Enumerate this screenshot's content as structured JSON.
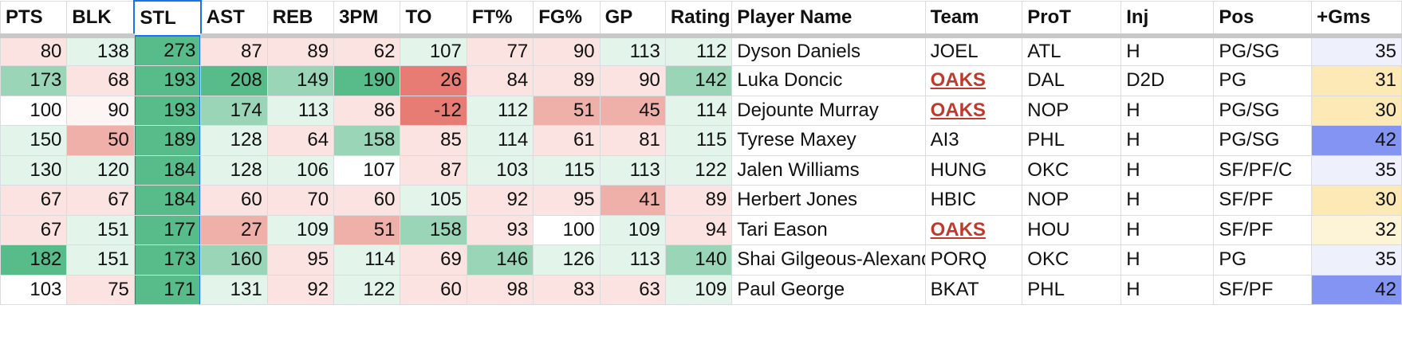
{
  "headers": [
    "PTS",
    "BLK",
    "STL",
    "AST",
    "REB",
    "3PM",
    "TO",
    "FT%",
    "FG%",
    "GP",
    "Rating",
    "Player Name",
    "Team",
    "ProT",
    "Inj",
    "Pos",
    "+Gms"
  ],
  "selected_column": "STL",
  "colors": {
    "green_strong": "#57bb8a",
    "green_mid": "#9bd5b8",
    "green_light": "#e3f4eb",
    "red_strong": "#e67c73",
    "red_mid": "#f0b0aa",
    "red_light": "#fbe3e1",
    "yellow": "#fde9b5",
    "yellow_light": "#fdf3d6",
    "blue": "#8494f2",
    "blue_light": "#eef0fb",
    "oaks_text": "#c0392b",
    "selection": "#1a73e8"
  },
  "rows": [
    {
      "pts": "80",
      "blk": "138",
      "stl": "273",
      "ast": "87",
      "reb": "89",
      "tpm": "62",
      "to": "107",
      "ft": "77",
      "fg": "90",
      "gp": "113",
      "rating": "112",
      "name": "Dyson Daniels",
      "team": "JOEL",
      "prot": "ATL",
      "inj": "H",
      "pos": "PG/SG",
      "gms": "35"
    },
    {
      "pts": "173",
      "blk": "68",
      "stl": "193",
      "ast": "208",
      "reb": "149",
      "tpm": "190",
      "to": "26",
      "ft": "84",
      "fg": "89",
      "gp": "90",
      "rating": "142",
      "name": "Luka Doncic",
      "team": "OAKS",
      "prot": "DAL",
      "inj": "D2D",
      "pos": "PG",
      "gms": "31"
    },
    {
      "pts": "100",
      "blk": "90",
      "stl": "193",
      "ast": "174",
      "reb": "113",
      "tpm": "86",
      "to": "-12",
      "ft": "112",
      "fg": "51",
      "gp": "45",
      "rating": "114",
      "name": "Dejounte Murray",
      "team": "OAKS",
      "prot": "NOP",
      "inj": "H",
      "pos": "PG/SG",
      "gms": "30"
    },
    {
      "pts": "150",
      "blk": "50",
      "stl": "189",
      "ast": "128",
      "reb": "64",
      "tpm": "158",
      "to": "85",
      "ft": "114",
      "fg": "61",
      "gp": "81",
      "rating": "115",
      "name": "Tyrese Maxey",
      "team": "AI3",
      "prot": "PHL",
      "inj": "H",
      "pos": "PG/SG",
      "gms": "42"
    },
    {
      "pts": "130",
      "blk": "120",
      "stl": "184",
      "ast": "128",
      "reb": "106",
      "tpm": "107",
      "to": "87",
      "ft": "103",
      "fg": "115",
      "gp": "113",
      "rating": "122",
      "name": "Jalen Williams",
      "team": "HUNG",
      "prot": "OKC",
      "inj": "H",
      "pos": "SF/PF/C",
      "gms": "35"
    },
    {
      "pts": "67",
      "blk": "67",
      "stl": "184",
      "ast": "60",
      "reb": "70",
      "tpm": "60",
      "to": "105",
      "ft": "92",
      "fg": "95",
      "gp": "41",
      "rating": "89",
      "name": "Herbert Jones",
      "team": "HBIC",
      "prot": "NOP",
      "inj": "H",
      "pos": "SF/PF",
      "gms": "30"
    },
    {
      "pts": "67",
      "blk": "151",
      "stl": "177",
      "ast": "27",
      "reb": "109",
      "tpm": "51",
      "to": "158",
      "ft": "93",
      "fg": "100",
      "gp": "109",
      "rating": "94",
      "name": "Tari Eason",
      "team": "OAKS",
      "prot": "HOU",
      "inj": "H",
      "pos": "SF/PF",
      "gms": "32"
    },
    {
      "pts": "182",
      "blk": "151",
      "stl": "173",
      "ast": "160",
      "reb": "95",
      "tpm": "114",
      "to": "69",
      "ft": "146",
      "fg": "126",
      "gp": "113",
      "rating": "140",
      "name": "Shai Gilgeous-Alexander",
      "team": "PORQ",
      "prot": "OKC",
      "inj": "H",
      "pos": "PG",
      "gms": "35"
    },
    {
      "pts": "103",
      "blk": "75",
      "stl": "171",
      "ast": "131",
      "reb": "92",
      "tpm": "122",
      "to": "60",
      "ft": "98",
      "fg": "83",
      "gp": "63",
      "rating": "109",
      "name": "Paul George",
      "team": "BKAT",
      "prot": "PHL",
      "inj": "H",
      "pos": "SF/PF",
      "gms": "42"
    }
  ]
}
